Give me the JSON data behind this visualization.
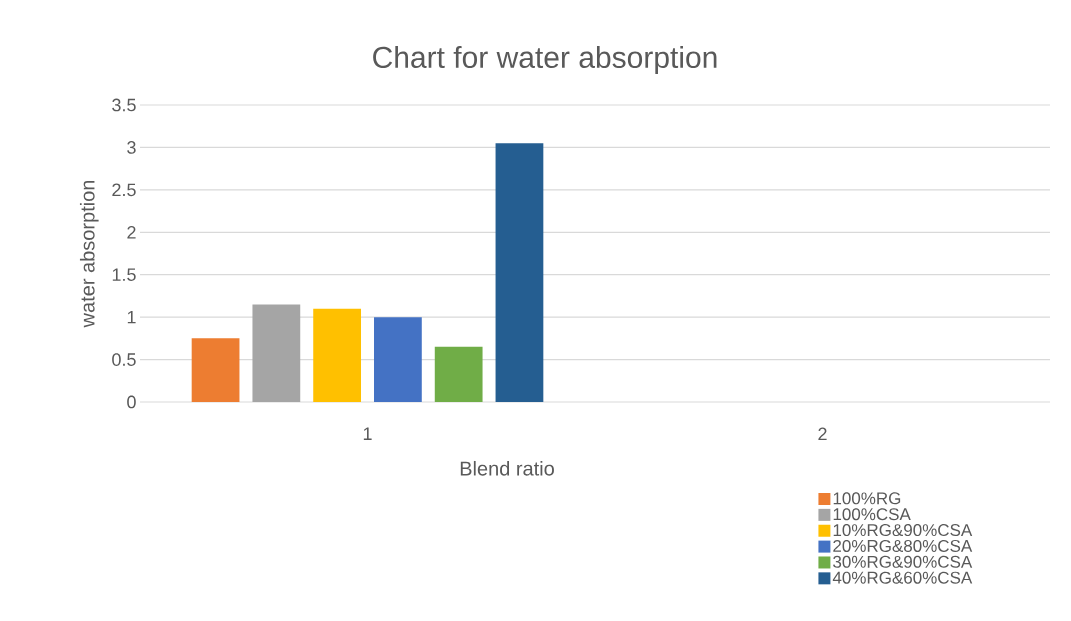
{
  "chart_data": {
    "type": "bar",
    "title": "Chart for water absorption",
    "xlabel": "Blend ratio",
    "ylabel": "water absorption",
    "categories": [
      "1",
      "2"
    ],
    "series": [
      {
        "name": "100%RG",
        "color": "#ed7d31",
        "values": [
          0.75,
          null
        ]
      },
      {
        "name": "100%CSA",
        "color": "#a5a5a5",
        "values": [
          1.15,
          null
        ]
      },
      {
        "name": "10%RG&90%CSA",
        "color": "#ffc000",
        "values": [
          1.1,
          null
        ]
      },
      {
        "name": "20%RG&80%CSA",
        "color": "#4472c4",
        "values": [
          1.0,
          null
        ]
      },
      {
        "name": "30%RG&90%CSA",
        "color": "#70ad47",
        "values": [
          0.65,
          null
        ]
      },
      {
        "name": "40%RG&60%CSA",
        "color": "#255e91",
        "values": [
          3.05,
          null
        ]
      }
    ],
    "ylim": [
      0,
      3.5
    ],
    "yticks": [
      0,
      0.5,
      1,
      1.5,
      2,
      2.5,
      3,
      3.5
    ],
    "grid": "y",
    "legend": "bottom right"
  }
}
